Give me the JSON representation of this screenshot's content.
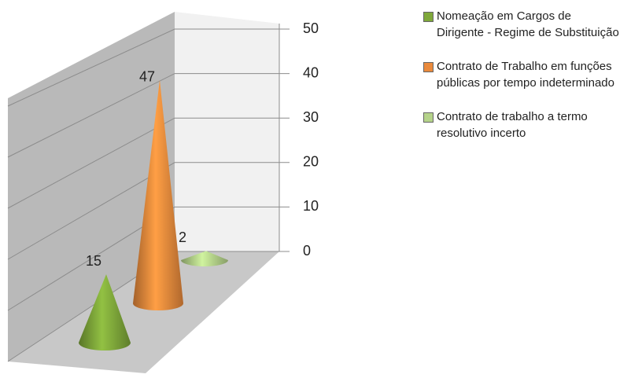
{
  "chart_data": {
    "type": "cone",
    "categories": [
      null
    ],
    "series": [
      {
        "name": "Nomeação em Cargos de Dirigente - Regime de Substituição",
        "color": "#7fa83a",
        "values": [
          15
        ]
      },
      {
        "name": "Contrato de Trabalho em funções públicas por tempo indeterminado",
        "color": "#ea8a3c",
        "values": [
          47
        ]
      },
      {
        "name": "Contrato de trabalho a termo resolutivo incerto",
        "color": "#b5d38a",
        "values": [
          2
        ]
      }
    ],
    "ylim": [
      0,
      50
    ],
    "yticks": [
      0,
      10,
      20,
      30,
      40,
      50
    ],
    "grid": true,
    "legend": "right"
  }
}
